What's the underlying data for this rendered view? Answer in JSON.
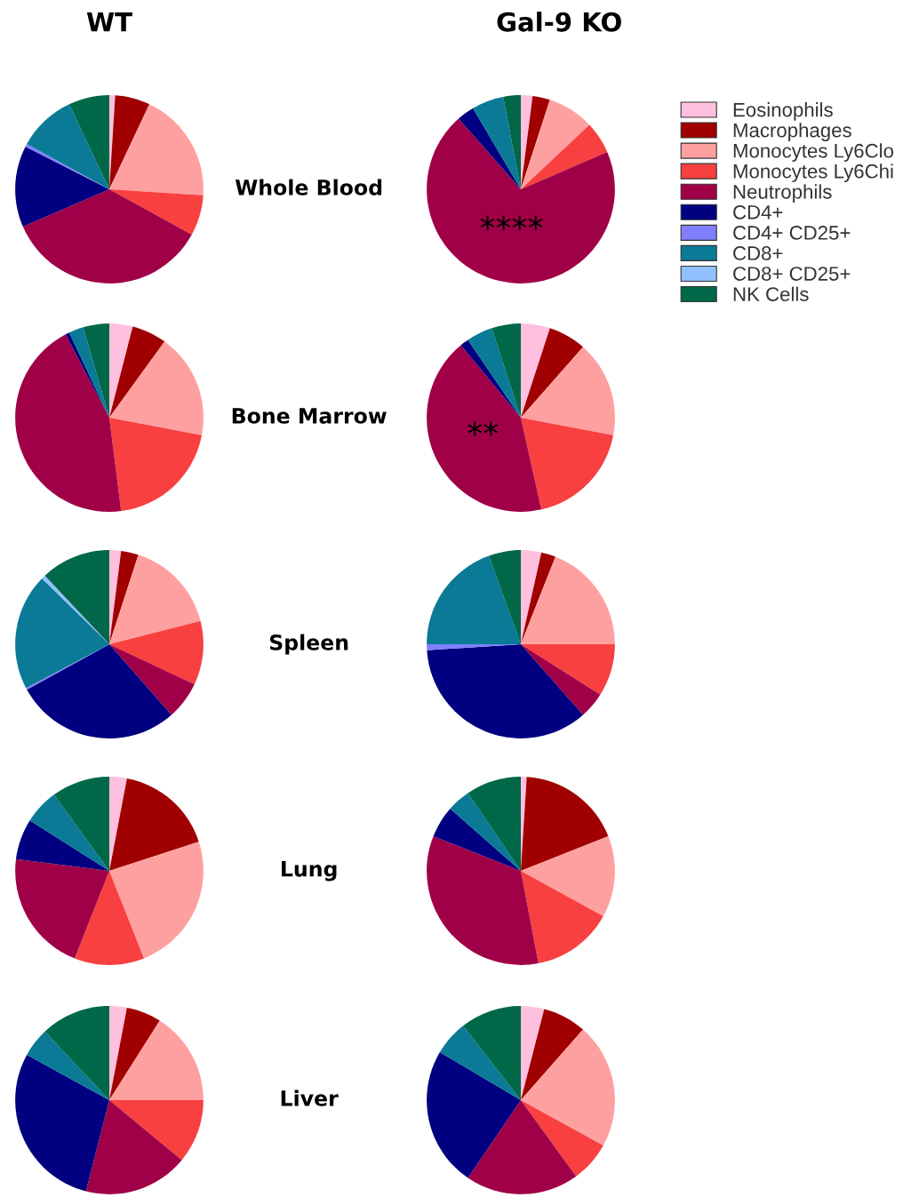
{
  "chart_data": [
    {
      "type": "pie",
      "title": "WT",
      "annotations": [
        "Whole Blood"
      ],
      "legend": "right",
      "categories": [
        "Eosinophils",
        "Macrophages",
        "Monocytes Ly6Clo",
        "Monocytes Ly6Chi",
        "Neutrophils",
        "CD4+",
        "CD4+ CD25+",
        "CD8+",
        "CD8+ CD25+",
        "NK Cells"
      ],
      "values": [
        1,
        6,
        19,
        7,
        35.5,
        14,
        0.5,
        10,
        0,
        7
      ],
      "colors": [
        "#ffc0e0",
        "#a00000",
        "#ffa0a0",
        "#f84040",
        "#a00048",
        "#000080",
        "#8080ff",
        "#0a7a96",
        "#90c0ff",
        "#006848"
      ]
    },
    {
      "type": "pie",
      "title": "Gal-9 KO",
      "annotations": [
        "****"
      ],
      "categories": [
        null,
        null,
        null,
        null,
        null,
        null,
        null,
        null,
        null,
        null
      ],
      "values": [
        2,
        3,
        8,
        5.5,
        70,
        3,
        0,
        5.5,
        0,
        3
      ],
      "colors": [
        "#ffc0e0",
        "#a00000",
        "#ffa0a0",
        "#f84040",
        "#a00048",
        "#000080",
        "#8080ff",
        "#0a7a96",
        "#90c0ff",
        "#006848"
      ]
    },
    {
      "type": "pie",
      "annotations": [
        "Bone Marrow"
      ],
      "categories": [
        null,
        null,
        null,
        null,
        null,
        null,
        null,
        null,
        null,
        null
      ],
      "values": [
        4,
        6,
        18,
        20,
        44.3,
        0.7,
        0,
        2.5,
        0,
        4.5
      ],
      "colors": [
        "#ffc0e0",
        "#a00000",
        "#ffa0a0",
        "#f84040",
        "#a00048",
        "#000080",
        "#8080ff",
        "#0a7a96",
        "#90c0ff",
        "#006848"
      ]
    },
    {
      "type": "pie",
      "annotations": [
        "**"
      ],
      "categories": [
        null,
        null,
        null,
        null,
        null,
        null,
        null,
        null,
        null,
        null
      ],
      "values": [
        5,
        6.5,
        16.5,
        18.5,
        42.5,
        1.5,
        0,
        4.5,
        0,
        5
      ],
      "colors": [
        "#ffc0e0",
        "#a00000",
        "#ffa0a0",
        "#f84040",
        "#a00048",
        "#000080",
        "#8080ff",
        "#0a7a96",
        "#90c0ff",
        "#006848"
      ]
    },
    {
      "type": "pie",
      "annotations": [
        "Spleen"
      ],
      "categories": [
        null,
        null,
        null,
        null,
        null,
        null,
        null,
        null,
        null,
        null
      ],
      "values": [
        2,
        3,
        16,
        11,
        6.5,
        28.5,
        0.3,
        20,
        0.7,
        12
      ],
      "colors": [
        "#ffc0e0",
        "#a00000",
        "#ffa0a0",
        "#f84040",
        "#a00048",
        "#000080",
        "#8080ff",
        "#0a7a96",
        "#90c0ff",
        "#006848"
      ]
    },
    {
      "type": "pie",
      "categories": [
        null,
        null,
        null,
        null,
        null,
        null,
        null,
        null,
        null,
        null
      ],
      "values": [
        3.5,
        2.5,
        19,
        9,
        4.5,
        35.5,
        1,
        19.5,
        0,
        5.5
      ],
      "colors": [
        "#ffc0e0",
        "#a00000",
        "#ffa0a0",
        "#f84040",
        "#a00048",
        "#000080",
        "#8080ff",
        "#0a7a96",
        "#90c0ff",
        "#006848"
      ]
    },
    {
      "type": "pie",
      "annotations": [
        "Lung"
      ],
      "categories": [
        null,
        null,
        null,
        null,
        null,
        null,
        null,
        null,
        null,
        null
      ],
      "values": [
        3,
        17,
        24,
        12,
        21,
        7,
        0,
        6,
        0,
        10
      ],
      "colors": [
        "#ffc0e0",
        "#a00000",
        "#ffa0a0",
        "#f84040",
        "#a00048",
        "#000080",
        "#8080ff",
        "#0a7a96",
        "#90c0ff",
        "#006848"
      ]
    },
    {
      "type": "pie",
      "categories": [
        null,
        null,
        null,
        null,
        null,
        null,
        null,
        null,
        null,
        null
      ],
      "values": [
        1,
        18,
        14,
        14,
        34,
        5.5,
        0,
        4,
        0,
        9.5
      ],
      "colors": [
        "#ffc0e0",
        "#a00000",
        "#ffa0a0",
        "#f84040",
        "#a00048",
        "#000080",
        "#8080ff",
        "#0a7a96",
        "#90c0ff",
        "#006848"
      ]
    },
    {
      "type": "pie",
      "annotations": [
        "Liver"
      ],
      "categories": [
        null,
        null,
        null,
        null,
        null,
        null,
        null,
        null,
        null,
        null
      ],
      "values": [
        3,
        6,
        16,
        11,
        18,
        29,
        0,
        5,
        0,
        12
      ],
      "colors": [
        "#ffc0e0",
        "#a00000",
        "#ffa0a0",
        "#f84040",
        "#a00048",
        "#000080",
        "#8080ff",
        "#0a7a96",
        "#90c0ff",
        "#006848"
      ]
    },
    {
      "type": "pie",
      "categories": [
        null,
        null,
        null,
        null,
        null,
        null,
        null,
        null,
        null,
        null
      ],
      "values": [
        4,
        7.5,
        21.5,
        7,
        19.5,
        24,
        0,
        6,
        0,
        10.5
      ],
      "colors": [
        "#ffc0e0",
        "#a00000",
        "#ffa0a0",
        "#f84040",
        "#a00048",
        "#000080",
        "#8080ff",
        "#0a7a96",
        "#90c0ff",
        "#006848"
      ]
    }
  ]
}
